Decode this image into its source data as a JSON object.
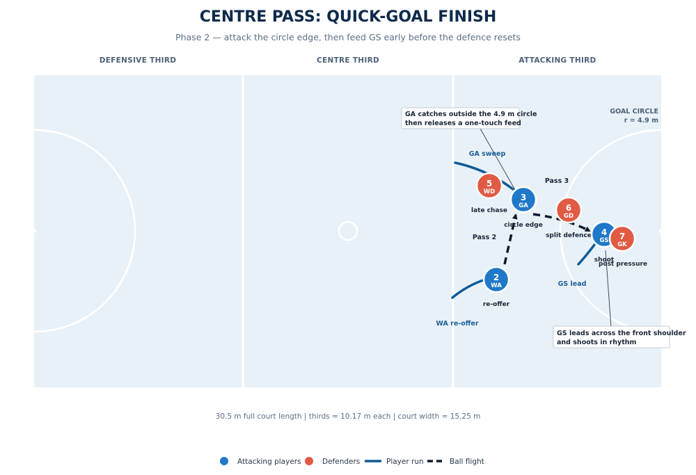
{
  "title": "CENTRE PASS: QUICK-GOAL FINISH",
  "subtitle": "Phase 2 — attack the circle edge, then feed GS early before the defence resets",
  "thirds": [
    "DEFENSIVE THIRD",
    "CENTRE THIRD",
    "ATTACKING THIRD"
  ],
  "goal_circle": {
    "label": "GOAL CIRCLE",
    "radius_label": "r = 4.9 m"
  },
  "players": [
    {
      "id": "wa",
      "number": "2",
      "position": "WA",
      "team": "attack",
      "status": "re-offer"
    },
    {
      "id": "ga",
      "number": "3",
      "position": "GA",
      "team": "attack",
      "status": "circle edge"
    },
    {
      "id": "gs",
      "number": "4",
      "position": "GS",
      "team": "attack",
      "status": "shoot"
    },
    {
      "id": "wd",
      "number": "5",
      "position": "WD",
      "team": "defence",
      "status": "late chase"
    },
    {
      "id": "gd",
      "number": "6",
      "position": "GD",
      "team": "defence",
      "status": "split defence"
    },
    {
      "id": "gk",
      "number": "7",
      "position": "GK",
      "team": "defence",
      "status": "post pressure"
    }
  ],
  "runs": [
    {
      "id": "wa-run",
      "label": "WA re-offer"
    },
    {
      "id": "ga-run",
      "label": "GA sweep"
    },
    {
      "id": "gs-run",
      "label": "GS lead"
    }
  ],
  "passes": [
    {
      "id": "pass-2",
      "label": "Pass 2"
    },
    {
      "id": "pass-3",
      "label": "Pass 3"
    }
  ],
  "callouts": [
    {
      "id": "ga-callout",
      "lines": [
        "GA catches outside the 4.9 m circle",
        "then releases a one-touch feed"
      ]
    },
    {
      "id": "gs-callout",
      "lines": [
        "GS leads across the front shoulder",
        "and shoots in rhythm"
      ]
    }
  ],
  "footer": "30.5 m full court length  |  thirds = 10.17 m each  |  court width = 15.25 m",
  "legend": [
    {
      "id": "attack",
      "label": "Attacking players"
    },
    {
      "id": "defence",
      "label": "Defenders"
    },
    {
      "id": "run",
      "label": "Player run"
    },
    {
      "id": "ball",
      "label": "Ball flight"
    }
  ],
  "colors": {
    "attack": "#1f78c8",
    "defence": "#e05a44",
    "run": "#0f5a96",
    "ball": "#0d1a2b",
    "court": "#e8f1f7",
    "court_lines": "#ffffff"
  }
}
